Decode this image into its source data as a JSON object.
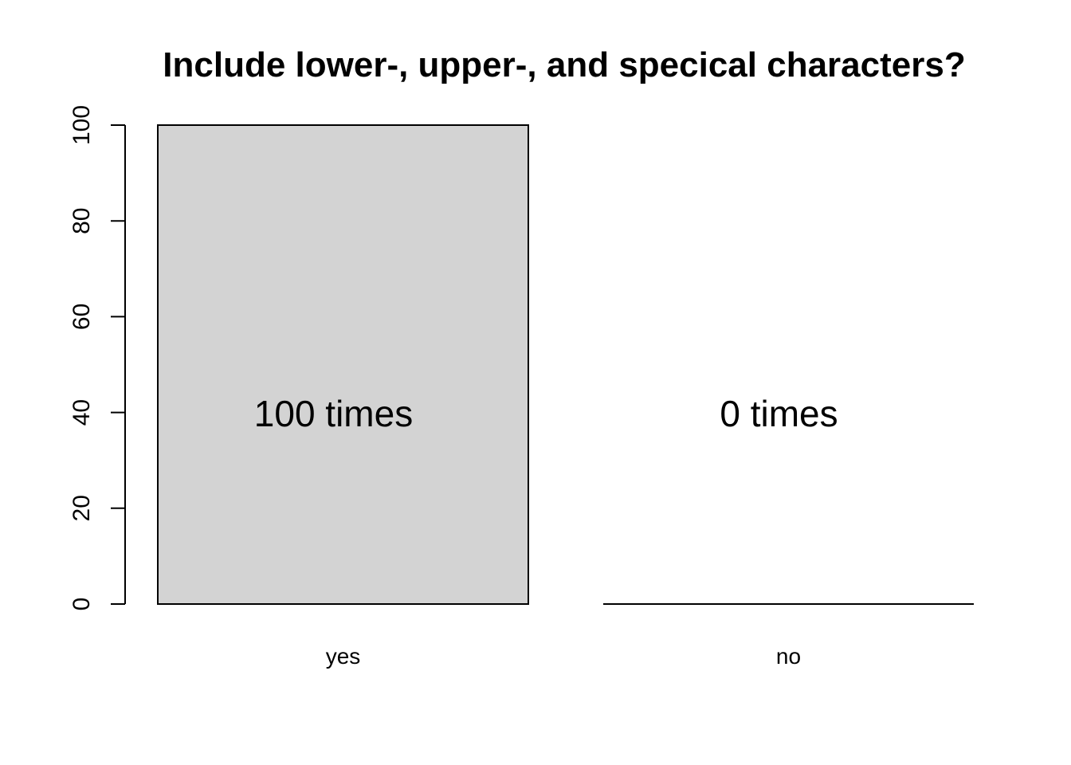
{
  "chart_data": {
    "type": "bar",
    "title": "Include lower-, upper-, and specical characters?",
    "xlabel": "",
    "ylabel": "",
    "categories": [
      "yes",
      "no"
    ],
    "values": [
      100,
      0
    ],
    "bar_labels": [
      "100 times",
      "0 times"
    ],
    "ylim": [
      0,
      100
    ],
    "yticks": [
      0,
      20,
      40,
      60,
      80,
      100
    ],
    "bar_fill": "#d3d3d3",
    "bar_stroke": "#000000",
    "grid": false,
    "legend": "none"
  }
}
